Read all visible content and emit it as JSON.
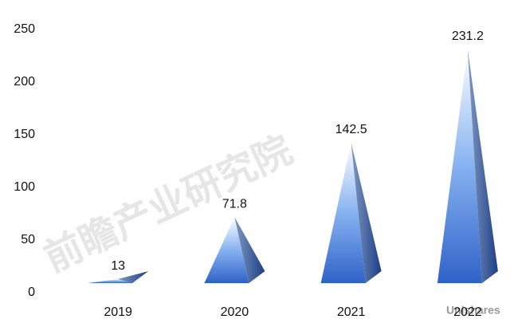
{
  "chart_data": {
    "type": "pyramid",
    "categories": [
      "2019",
      "2020",
      "2021",
      "2022"
    ],
    "values": [
      13,
      71.8,
      142.5,
      231.2
    ],
    "color": "#2f62c8",
    "ylim": [
      0,
      250
    ],
    "yticks": [
      0,
      50,
      100,
      150,
      200,
      250
    ],
    "watermarks": [
      "前瞻产业研究院",
      "Unishares"
    ]
  }
}
